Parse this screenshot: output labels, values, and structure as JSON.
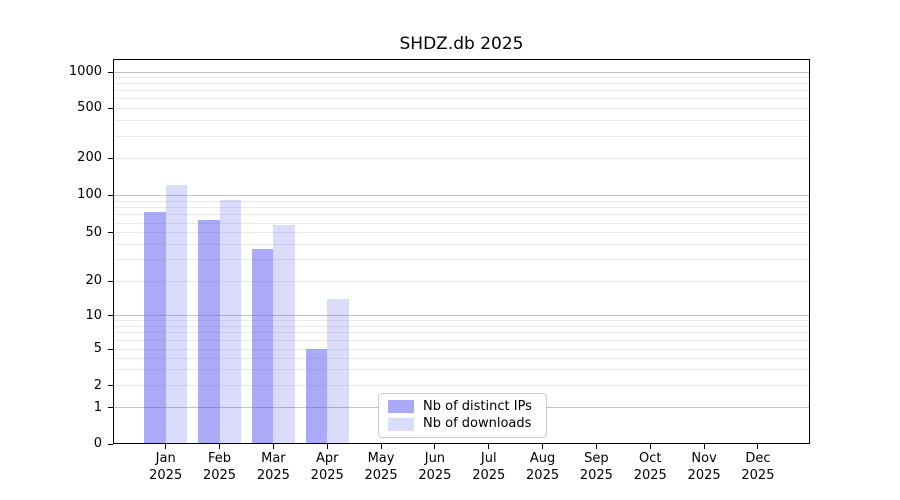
{
  "chart_data": {
    "type": "bar",
    "title": "SHDZ.db 2025",
    "categories": [
      "Jan",
      "Feb",
      "Mar",
      "Apr",
      "May",
      "Jun",
      "Jul",
      "Aug",
      "Sep",
      "Oct",
      "Nov",
      "Dec"
    ],
    "year_label": "2025",
    "series": [
      {
        "name": "Nb of distinct IPs",
        "color": "rgba(85,85,238,0.50)",
        "values": [
          74,
          64,
          37,
          5,
          0,
          0,
          0,
          0,
          0,
          0,
          0,
          0
        ]
      },
      {
        "name": "Nb of downloads",
        "color": "rgba(85,85,238,0.21)",
        "values": [
          122,
          92,
          58,
          14,
          0,
          0,
          0,
          0,
          0,
          0,
          0,
          0
        ]
      }
    ],
    "y_axis": {
      "scale": "symlog",
      "ticks": [
        0,
        1,
        2,
        5,
        10,
        20,
        50,
        100,
        200,
        500,
        1000
      ]
    },
    "grid": {
      "horizontal": true,
      "minor": true
    },
    "legend_position": "lower-center-right"
  },
  "colors": {
    "grid_major": "#c2c2c2",
    "grid_minor": "#eaeaea",
    "spine": "#000000",
    "background": "#ffffff",
    "legend_border": "#cccccc"
  }
}
